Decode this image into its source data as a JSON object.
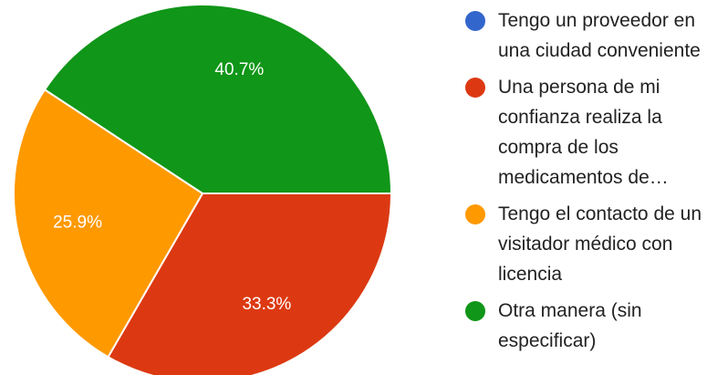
{
  "chart_data": {
    "type": "pie",
    "categories": [
      "Tengo un proveedor en una ciudad conveniente",
      "Una persona de mi confianza realiza la compra de los medicamentos de…",
      "Tengo el contacto de un visitador médico con licencia",
      "Otra manera (sin especificar)"
    ],
    "values": [
      0,
      33.3,
      25.9,
      40.7
    ],
    "value_labels": [
      null,
      "33.3%",
      "25.9%",
      "40.7%"
    ],
    "colors": [
      "#3366cc",
      "#dc3912",
      "#ff9900",
      "#109618"
    ]
  }
}
